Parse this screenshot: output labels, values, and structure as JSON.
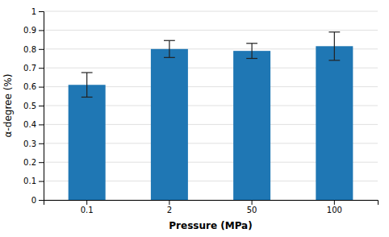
{
  "chart_data": {
    "type": "bar",
    "categories": [
      "0.1",
      "2",
      "50",
      "100"
    ],
    "values": [
      0.61,
      0.8,
      0.79,
      0.815
    ],
    "errors": [
      0.065,
      0.045,
      0.04,
      0.075
    ],
    "xlabel": "Pressure (MPa)",
    "ylabel": "α-degree (%)",
    "ylim": [
      0,
      1.0
    ],
    "yticks": [
      0,
      0.1,
      0.2,
      0.3,
      0.4,
      0.5,
      0.6,
      0.7,
      0.8,
      0.9,
      1
    ],
    "grid": true
  }
}
